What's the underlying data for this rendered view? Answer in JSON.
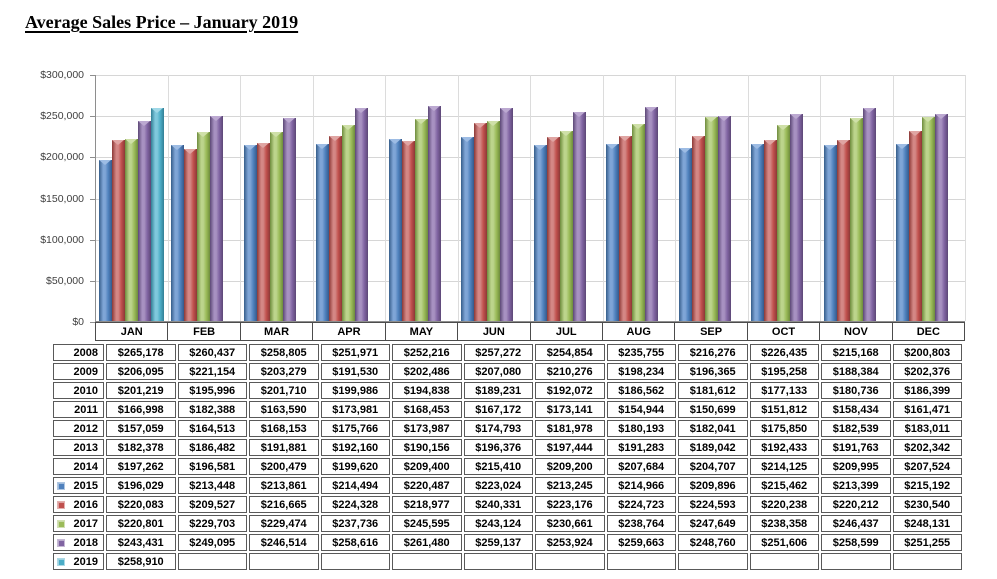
{
  "title": "Average Sales Price – January 2019",
  "chart_data": {
    "type": "bar",
    "title": "Average Sales Price – January 2019",
    "categories": [
      "JAN",
      "FEB",
      "MAR",
      "APR",
      "MAY",
      "JUN",
      "JUL",
      "AUG",
      "SEP",
      "OCT",
      "NOV",
      "DEC"
    ],
    "series": [
      {
        "name": "2015",
        "color": "#4f81bd",
        "values": [
          196029,
          213448,
          213861,
          214494,
          220487,
          223024,
          213245,
          214966,
          209896,
          215462,
          213399,
          215192
        ]
      },
      {
        "name": "2016",
        "color": "#c0504d",
        "values": [
          220083,
          209527,
          216665,
          224328,
          218977,
          240331,
          223176,
          224723,
          224593,
          220238,
          220212,
          230540
        ]
      },
      {
        "name": "2017",
        "color": "#9bbb59",
        "values": [
          220801,
          229703,
          229474,
          237736,
          245595,
          243124,
          230661,
          238764,
          247649,
          238358,
          246437,
          248131
        ]
      },
      {
        "name": "2018",
        "color": "#8064a2",
        "values": [
          243431,
          249095,
          246514,
          258616,
          261480,
          259137,
          253924,
          259663,
          248760,
          251606,
          258599,
          251255
        ]
      },
      {
        "name": "2019",
        "color": "#4bacc6",
        "values": [
          258910,
          null,
          null,
          null,
          null,
          null,
          null,
          null,
          null,
          null,
          null,
          null
        ]
      }
    ],
    "xlabel": "",
    "ylabel": "",
    "ylim": [
      0,
      300000
    ],
    "y_tick_step": 50000,
    "y_axis_labels": [
      "$300,000",
      "$250,000",
      "$200,000",
      "$150,000",
      "$100,000",
      "$50,000",
      "$0"
    ],
    "grid": true,
    "legend_position": "table-row-labels"
  },
  "table": {
    "rows": [
      {
        "year": "2008",
        "marker": null,
        "values": [
          265178,
          260437,
          258805,
          251971,
          252216,
          257272,
          254854,
          235755,
          216276,
          226435,
          215168,
          200803
        ]
      },
      {
        "year": "2009",
        "marker": null,
        "values": [
          206095,
          221154,
          203279,
          191530,
          202486,
          207080,
          210276,
          198234,
          196365,
          195258,
          188384,
          202376
        ]
      },
      {
        "year": "2010",
        "marker": null,
        "values": [
          201219,
          195996,
          201710,
          199986,
          194838,
          189231,
          192072,
          186562,
          181612,
          177133,
          180736,
          186399
        ]
      },
      {
        "year": "2011",
        "marker": null,
        "values": [
          166998,
          182388,
          163590,
          173981,
          168453,
          167172,
          173141,
          154944,
          150699,
          151812,
          158434,
          161471
        ]
      },
      {
        "year": "2012",
        "marker": null,
        "values": [
          157059,
          164513,
          168153,
          175766,
          173987,
          174793,
          181978,
          180193,
          182041,
          175850,
          182539,
          183011
        ]
      },
      {
        "year": "2013",
        "marker": null,
        "values": [
          182378,
          186482,
          191881,
          192160,
          190156,
          196376,
          197444,
          191283,
          189042,
          192433,
          191763,
          202342
        ]
      },
      {
        "year": "2014",
        "marker": null,
        "values": [
          197262,
          196581,
          200479,
          199620,
          209400,
          215410,
          209200,
          207684,
          204707,
          214125,
          209995,
          207524
        ]
      },
      {
        "year": "2015",
        "marker": "#4f81bd",
        "values": [
          196029,
          213448,
          213861,
          214494,
          220487,
          223024,
          213245,
          214966,
          209896,
          215462,
          213399,
          215192
        ]
      },
      {
        "year": "2016",
        "marker": "#c0504d",
        "values": [
          220083,
          209527,
          216665,
          224328,
          218977,
          240331,
          223176,
          224723,
          224593,
          220238,
          220212,
          230540
        ]
      },
      {
        "year": "2017",
        "marker": "#9bbb59",
        "values": [
          220801,
          229703,
          229474,
          237736,
          245595,
          243124,
          230661,
          238764,
          247649,
          238358,
          246437,
          248131
        ]
      },
      {
        "year": "2018",
        "marker": "#8064a2",
        "values": [
          243431,
          249095,
          246514,
          258616,
          261480,
          259137,
          253924,
          259663,
          248760,
          251606,
          258599,
          251255
        ]
      },
      {
        "year": "2019",
        "marker": "#4bacc6",
        "values": [
          258910,
          null,
          null,
          null,
          null,
          null,
          null,
          null,
          null,
          null,
          null,
          null
        ]
      }
    ]
  }
}
